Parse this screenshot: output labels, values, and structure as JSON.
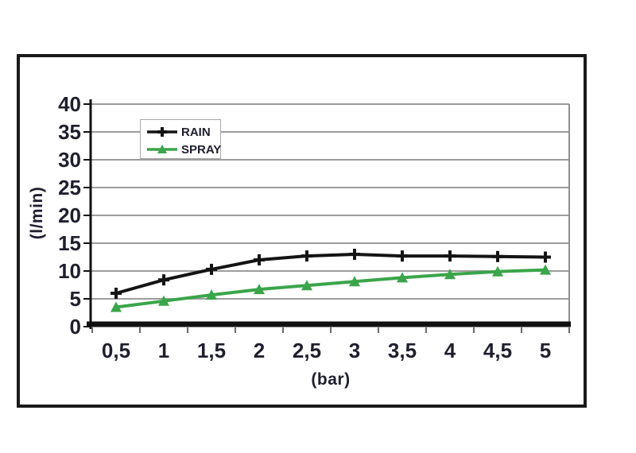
{
  "chart_data": {
    "type": "line",
    "title": "",
    "xlabel": "(bar)",
    "ylabel": "(l/min)",
    "x": [
      0.5,
      1,
      1.5,
      2,
      2.5,
      3,
      3.5,
      4,
      4.5,
      5
    ],
    "x_tick_labels": [
      "0,5",
      "1",
      "1,5",
      "2",
      "2,5",
      "3",
      "3,5",
      "4",
      "4,5",
      "5"
    ],
    "y_ticks": [
      0,
      5,
      10,
      15,
      20,
      25,
      30,
      35,
      40
    ],
    "ylim": [
      0,
      40
    ],
    "grid": "horizontal-major",
    "legend_position": "top-left-inside",
    "series": [
      {
        "name": "RAIN",
        "color": "#141414",
        "marker": "plus",
        "values": [
          6,
          8.4,
          10.3,
          12,
          12.7,
          13,
          12.7,
          12.7,
          12.6,
          12.5
        ]
      },
      {
        "name": "SPRAY",
        "color": "#3aa54a",
        "marker": "triangle",
        "values": [
          3.5,
          4.6,
          5.7,
          6.7,
          7.4,
          8.1,
          8.8,
          9.4,
          9.9,
          10.2
        ]
      }
    ],
    "colors": {
      "grid": "#9c9c9c",
      "axis": "#111111",
      "plot_border": "#8f8f8f",
      "minor_tick": "#6b6b6b",
      "text": "#1f1f2e",
      "frame": "#1a1a1a",
      "legend_border": "#a8a8a8"
    }
  }
}
